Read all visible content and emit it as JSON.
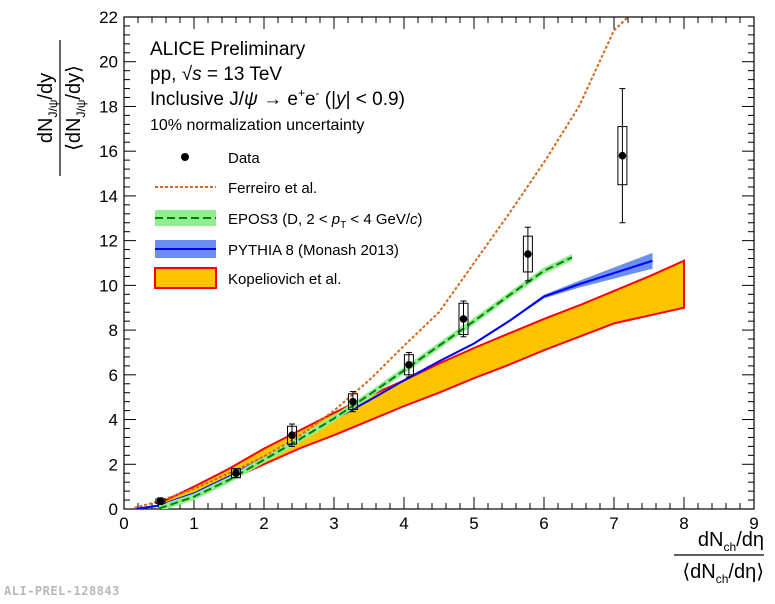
{
  "chart_data": {
    "type": "scatter",
    "xlabel_top": "dN",
    "xlabel_top_sub": "ch",
    "xlabel_top_tail": "/dη",
    "xlabel_bottom": "⟨dN",
    "xlabel_bottom_sub": "ch",
    "xlabel_bottom_tail": "/dη⟩",
    "ylabel_top": "dN",
    "ylabel_top_sub": "J/ψ",
    "ylabel_top_tail": "/dy",
    "ylabel_bottom": "⟨dN",
    "ylabel_bottom_sub": "J/ψ",
    "ylabel_bottom_tail": "/dy⟩",
    "xlim": [
      0,
      9
    ],
    "ylim": [
      0,
      22
    ],
    "xticks": [
      "0",
      "1",
      "2",
      "3",
      "4",
      "5",
      "6",
      "7",
      "8",
      "9"
    ],
    "yticks": [
      "0",
      "2",
      "4",
      "6",
      "8",
      "10",
      "12",
      "14",
      "16",
      "18",
      "20",
      "22"
    ],
    "annotations": {
      "experiment": "ALICE Preliminary",
      "collision_pre": "pp, ",
      "collision_sqrt": "√",
      "collision_s": "s",
      "collision_post": " = 13 TeV",
      "channel_pre": "Inclusive J/",
      "channel_psi": "ψ",
      "channel_arrow": " → e",
      "channel_plus": "+",
      "channel_e": "e",
      "channel_minus": "-",
      "channel_range_pre": " (|",
      "channel_y": "y",
      "channel_range_post": "| < 0.9)",
      "norm_uncertainty": "10% normalization uncertainty"
    },
    "legend": {
      "data": "Data",
      "ferreiro": "Ferreiro et al.",
      "epos_pre": "EPOS3 (D, 2 < ",
      "epos_p": "p",
      "epos_T": "T",
      "epos_post": " < 4 GeV/",
      "epos_c": "c",
      "epos_close": ")",
      "pythia": "PYTHIA 8 (Monash 2013)",
      "kopeliovich": "Kopeliovich et al."
    },
    "series": [
      {
        "name": "Data",
        "x": [
          0.52,
          1.6,
          2.4,
          3.27,
          4.07,
          4.85,
          5.77,
          7.12
        ],
        "y": [
          0.35,
          1.6,
          3.3,
          4.8,
          6.45,
          8.5,
          11.4,
          15.8
        ],
        "stat_err": [
          0.15,
          0.2,
          0.5,
          0.45,
          0.55,
          0.8,
          1.2,
          3.0
        ],
        "syst_err": [
          0.1,
          0.2,
          0.4,
          0.35,
          0.45,
          0.7,
          0.8,
          1.3
        ],
        "color": "#000000"
      },
      {
        "name": "Ferreiro et al.",
        "x": [
          0.15,
          0.5,
          1.0,
          1.5,
          2.0,
          2.5,
          3.0,
          3.5,
          4.0,
          4.5,
          5.0,
          5.5,
          6.0,
          6.5,
          6.75,
          7.0,
          7.2
        ],
        "y": [
          0.05,
          0.35,
          0.9,
          1.6,
          2.35,
          3.25,
          4.4,
          5.75,
          7.3,
          8.8,
          11.0,
          13.2,
          15.5,
          18.0,
          19.7,
          21.4,
          22.0
        ],
        "color": "#d2691e"
      },
      {
        "name": "EPOS3",
        "x": [
          0.5,
          1.0,
          1.5,
          2.0,
          2.5,
          3.0,
          3.5,
          4.0,
          4.5,
          5.0,
          5.5,
          6.0,
          6.4
        ],
        "y": [
          0.02,
          0.55,
          1.3,
          2.2,
          3.1,
          4.05,
          5.1,
          6.2,
          7.3,
          8.4,
          9.55,
          10.65,
          11.25
        ],
        "band": 0.15,
        "color": "#008000",
        "band_color": "#90ee90"
      },
      {
        "name": "PYTHIA 8 (Monash 2013)",
        "x": [
          0.15,
          0.5,
          1.0,
          1.5,
          2.0,
          2.5,
          3.0,
          3.5,
          4.0,
          4.5,
          5.0,
          5.5,
          6.0,
          6.5,
          7.0,
          7.55
        ],
        "y": [
          0.0,
          0.15,
          0.7,
          1.45,
          2.3,
          3.1,
          4.0,
          4.85,
          5.75,
          6.6,
          7.4,
          8.4,
          9.5,
          10.05,
          10.55,
          11.1
        ],
        "band": [
          0.05,
          0.05,
          0.05,
          0.05,
          0.05,
          0.05,
          0.05,
          0.05,
          0.05,
          0.05,
          0.05,
          0.05,
          0.08,
          0.15,
          0.25,
          0.35
        ],
        "color": "#0000ff",
        "band_color": "#6a8ff0"
      },
      {
        "name": "Kopeliovich et al.",
        "x": [
          0.5,
          1.0,
          1.5,
          2.0,
          2.5,
          3.0,
          3.5,
          4.0,
          4.5,
          5.0,
          5.5,
          6.0,
          6.5,
          7.0,
          7.5,
          8.0
        ],
        "y_low": [
          0.1,
          0.6,
          1.3,
          2.0,
          2.7,
          3.3,
          3.95,
          4.6,
          5.2,
          5.85,
          6.45,
          7.1,
          7.7,
          8.3,
          8.65,
          9.0
        ],
        "y_high": [
          0.25,
          1.0,
          1.8,
          2.7,
          3.5,
          4.3,
          5.05,
          5.75,
          6.5,
          7.2,
          7.85,
          8.5,
          9.1,
          9.75,
          10.4,
          11.1
        ],
        "color": "#ff0000",
        "fill_color": "#ffc400"
      }
    ]
  },
  "footer": {
    "tag": "ALI-PREL-128843"
  }
}
